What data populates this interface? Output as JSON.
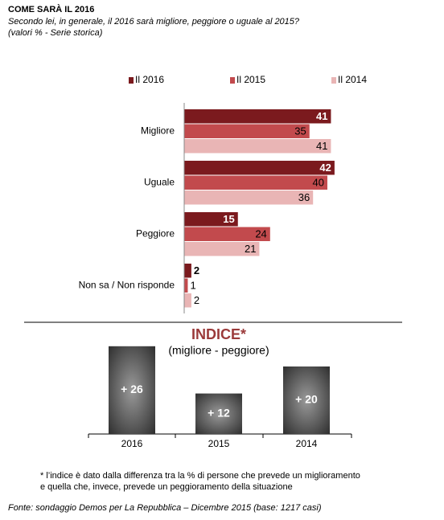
{
  "chart_data": [
    {
      "type": "hbar",
      "title": "COME SARÀ IL 2016",
      "subtitle": [
        "Secondo lei, in generale, il 2016 sarà migliore, peggiore o uguale al 2015?",
        "(valori % - Serie  storica)"
      ],
      "categories": [
        "Migliore",
        "Uguale",
        "Peggiore",
        "Non sa / Non risponde"
      ],
      "series": [
        {
          "name": "Il 2016",
          "color": "#7b1a1e",
          "values": [
            41,
            42,
            15,
            2
          ]
        },
        {
          "name": "Il 2015",
          "color": "#c24a4d",
          "values": [
            35,
            40,
            24,
            1
          ]
        },
        {
          "name": "Il 2014",
          "color": "#e9b5b5",
          "values": [
            41,
            36,
            21,
            2
          ]
        }
      ]
    },
    {
      "type": "bar",
      "title": "INDICE*",
      "subtitle": "(migliore - peggiore)",
      "categories": [
        "2016",
        "2015",
        "2014"
      ],
      "values": [
        26,
        12,
        20
      ],
      "value_labels": [
        "+ 26",
        "+ 12",
        "+ 20"
      ],
      "footnote": [
        "* l’indice è dato dalla differenza tra la % di persone che prevede un miglioramento",
        "e quella che, invece, prevede un peggioramento della situazione"
      ]
    }
  ],
  "source": "Fonte: sondaggio Demos per La Repubblica – Dicembre 2015 (base: 1217 casi)"
}
